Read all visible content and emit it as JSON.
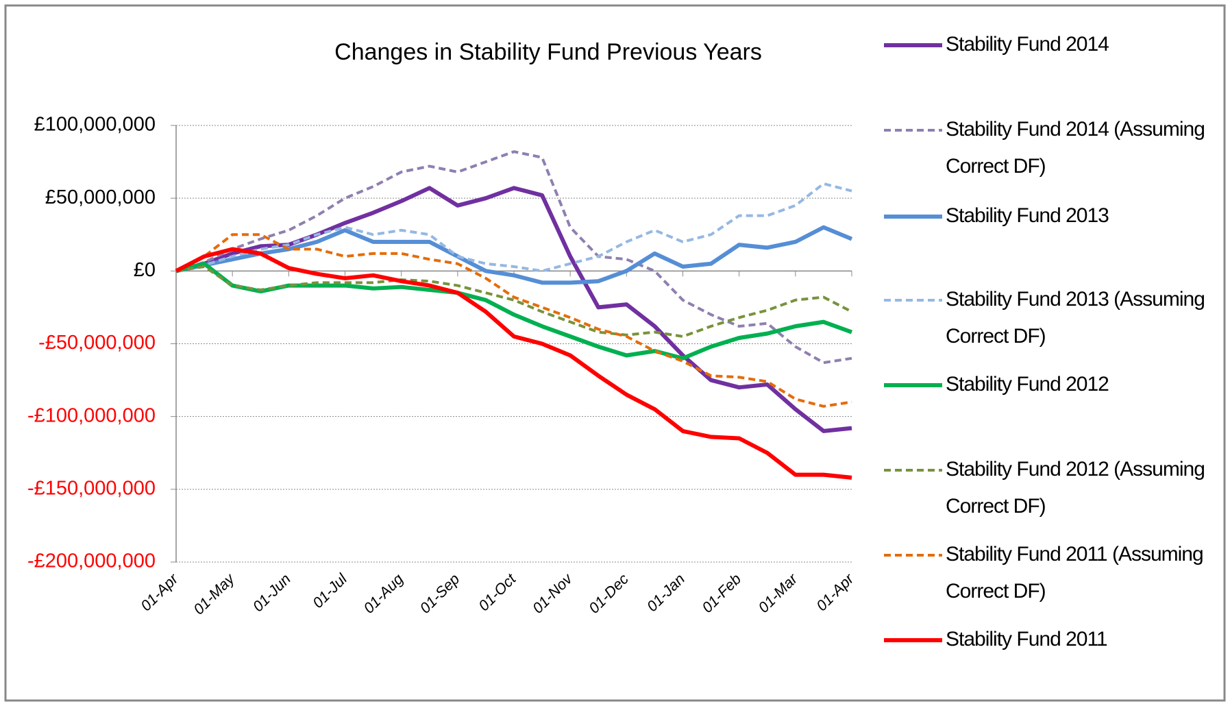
{
  "chart_data": {
    "type": "line",
    "title": "Changes in Stability Fund Previous Years",
    "categories": [
      "01-Apr",
      null,
      "01-May",
      null,
      "01-Jun",
      null,
      "01-Jul",
      null,
      "01-Aug",
      null,
      "01-Sep",
      null,
      "01-Oct",
      null,
      "01-Nov",
      null,
      "01-Dec",
      null,
      "01-Jan",
      null,
      "01-Feb",
      null,
      "01-Mar",
      null,
      "01-Apr"
    ],
    "ylim": [
      -200000000,
      100000000
    ],
    "yticks": [
      {
        "value": 100000000,
        "label": "£100,000,000"
      },
      {
        "value": 50000000,
        "label": "£50,000,000"
      },
      {
        "value": 0,
        "label": "£0"
      },
      {
        "value": -50000000,
        "label": "-£50,000,000"
      },
      {
        "value": -100000000,
        "label": "-£100,000,000"
      },
      {
        "value": -150000000,
        "label": "-£150,000,000"
      },
      {
        "value": -200000000,
        "label": "-£200,000,000"
      }
    ],
    "grid": true,
    "negative_tick_color": "#ff0000",
    "legend": "right",
    "series": [
      {
        "name": "Stability Fund 2014",
        "color": "#7030a0",
        "dashed": false,
        "values": [
          0,
          5000000,
          12000000,
          17000000,
          18000000,
          25000000,
          33000000,
          40000000,
          48000000,
          57000000,
          45000000,
          50000000,
          57000000,
          52000000,
          10000000,
          -25000000,
          -23000000,
          -38000000,
          -58000000,
          -75000000,
          -80000000,
          -78000000,
          -95000000,
          -110000000,
          -108000000
        ]
      },
      {
        "name": "Stability Fund 2014 (Assuming Correct DF)",
        "color": "#8f7fb0",
        "dashed": true,
        "values": [
          0,
          6000000,
          15000000,
          22000000,
          28000000,
          38000000,
          50000000,
          58000000,
          68000000,
          72000000,
          68000000,
          75000000,
          82000000,
          78000000,
          30000000,
          10000000,
          8000000,
          0,
          -20000000,
          -30000000,
          -38000000,
          -36000000,
          -52000000,
          -63000000,
          -60000000
        ]
      },
      {
        "name": "Stability Fund 2013",
        "color": "#558ed5",
        "dashed": false,
        "values": [
          0,
          4000000,
          8000000,
          12000000,
          15000000,
          20000000,
          28000000,
          20000000,
          20000000,
          20000000,
          10000000,
          0,
          -3000000,
          -8000000,
          -8000000,
          -7000000,
          0,
          12000000,
          3000000,
          5000000,
          18000000,
          16000000,
          20000000,
          30000000,
          22000000
        ]
      },
      {
        "name": "Stability Fund 2013 (Assuming Correct DF)",
        "color": "#95b8e3",
        "dashed": true,
        "values": [
          0,
          4000000,
          10000000,
          15000000,
          18000000,
          25000000,
          30000000,
          25000000,
          28000000,
          25000000,
          10000000,
          5000000,
          3000000,
          0,
          5000000,
          10000000,
          20000000,
          28000000,
          20000000,
          25000000,
          38000000,
          38000000,
          45000000,
          60000000,
          55000000
        ]
      },
      {
        "name": "Stability Fund 2012",
        "color": "#00b050",
        "dashed": false,
        "values": [
          0,
          5000000,
          -10000000,
          -14000000,
          -10000000,
          -10000000,
          -10000000,
          -12000000,
          -11000000,
          -13000000,
          -15000000,
          -20000000,
          -30000000,
          -38000000,
          -45000000,
          -52000000,
          -58000000,
          -55000000,
          -60000000,
          -52000000,
          -46000000,
          -43000000,
          -38000000,
          -35000000,
          -42000000
        ]
      },
      {
        "name": "Stability Fund 2012 (Assuming Correct DF)",
        "color": "#77933c",
        "dashed": true,
        "values": [
          0,
          3000000,
          -10000000,
          -13000000,
          -10000000,
          -8000000,
          -8000000,
          -8000000,
          -6000000,
          -7000000,
          -10000000,
          -15000000,
          -20000000,
          -28000000,
          -35000000,
          -42000000,
          -44000000,
          -42000000,
          -45000000,
          -38000000,
          -32000000,
          -27000000,
          -20000000,
          -18000000,
          -28000000
        ]
      },
      {
        "name": "Stability Fund 2011 (Assuming Correct DF)",
        "color": "#e46c0a",
        "dashed": true,
        "values": [
          0,
          10000000,
          25000000,
          25000000,
          15000000,
          15000000,
          10000000,
          12000000,
          12000000,
          8000000,
          5000000,
          -5000000,
          -18000000,
          -25000000,
          -32000000,
          -40000000,
          -45000000,
          -55000000,
          -62000000,
          -72000000,
          -73000000,
          -76000000,
          -88000000,
          -93000000,
          -90000000
        ]
      },
      {
        "name": "Stability Fund 2011",
        "color": "#ff0000",
        "dashed": false,
        "values": [
          0,
          10000000,
          15000000,
          12000000,
          2000000,
          -2000000,
          -5000000,
          -3000000,
          -7000000,
          -10000000,
          -15000000,
          -28000000,
          -45000000,
          -50000000,
          -58000000,
          -72000000,
          -85000000,
          -95000000,
          -110000000,
          -114000000,
          -115000000,
          -125000000,
          -140000000,
          -140000000,
          -142000000
        ]
      }
    ]
  }
}
